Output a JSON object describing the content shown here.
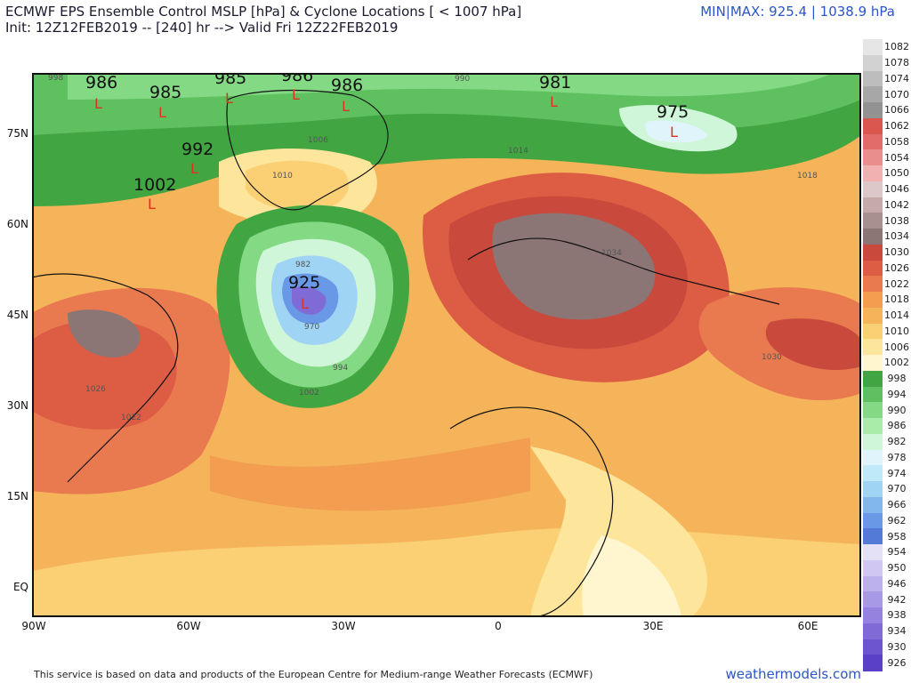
{
  "header": {
    "title": "ECMWF EPS Ensemble Control MSLP [hPa] & Cyclone Locations [ < 1007 hPa]",
    "subtitle": "Init: 12Z12FEB2019 -- [240] hr --> Valid Fri 12Z22FEB2019",
    "minmax": "MIN|MAX: 925.4 | 1038.9 hPa"
  },
  "axes": {
    "lat_labels": [
      "75N",
      "60N",
      "45N",
      "30N",
      "15N",
      "EQ"
    ],
    "lon_labels": [
      "90W",
      "60W",
      "30W",
      "0",
      "30E",
      "60E"
    ]
  },
  "colorbar": {
    "levels": [
      "1082",
      "1078",
      "1074",
      "1070",
      "1066",
      "1062",
      "1058",
      "1054",
      "1050",
      "1046",
      "1042",
      "1038",
      "1034",
      "1030",
      "1026",
      "1022",
      "1018",
      "1014",
      "1010",
      "1006",
      "1002",
      "998",
      "994",
      "990",
      "986",
      "982",
      "978",
      "974",
      "970",
      "966",
      "962",
      "958",
      "954",
      "950",
      "946",
      "942",
      "938",
      "934",
      "930",
      "926"
    ],
    "colors": [
      "#e6e6e6",
      "#d2d2d2",
      "#bdbdbd",
      "#a7a7a7",
      "#929292",
      "#d9574f",
      "#e06d6a",
      "#ea8d8d",
      "#f1b1b1",
      "#dcc8c8",
      "#c6aaaa",
      "#a99090",
      "#8b7575",
      "#c94a3c",
      "#dd5d44",
      "#e9794f",
      "#f29d50",
      "#f6b45a",
      "#fbcf73",
      "#fde59b",
      "#fff6cf",
      "#41a641",
      "#5fc05f",
      "#84d984",
      "#a9ecaa",
      "#cff6d8",
      "#dff5fb",
      "#bfe8f8",
      "#9fd4f4",
      "#82b7ee",
      "#6898e6",
      "#547ad8",
      "#e4e0f6",
      "#d0c8f2",
      "#bcb1ec",
      "#a899e6",
      "#9482de",
      "#806bd6",
      "#6c55cf",
      "#5a40c6"
    ]
  },
  "cyclones": [
    {
      "value": "986"
    },
    {
      "value": "985"
    },
    {
      "value": "985"
    },
    {
      "value": "986"
    },
    {
      "value": "986"
    },
    {
      "value": "992"
    },
    {
      "value": "1002"
    },
    {
      "value": "925"
    },
    {
      "value": "981"
    },
    {
      "value": "975"
    }
  ],
  "isobar_labels": [
    "998",
    "990",
    "1006",
    "1010",
    "1014",
    "1018",
    "1022",
    "1026",
    "1030",
    "982",
    "970",
    "994",
    "1002",
    "1034"
  ],
  "footer": {
    "note": "This service is based on data and products of the European Centre for Medium-range Weather Forecasts (ECMWF)",
    "site": "weathermodels.com"
  }
}
